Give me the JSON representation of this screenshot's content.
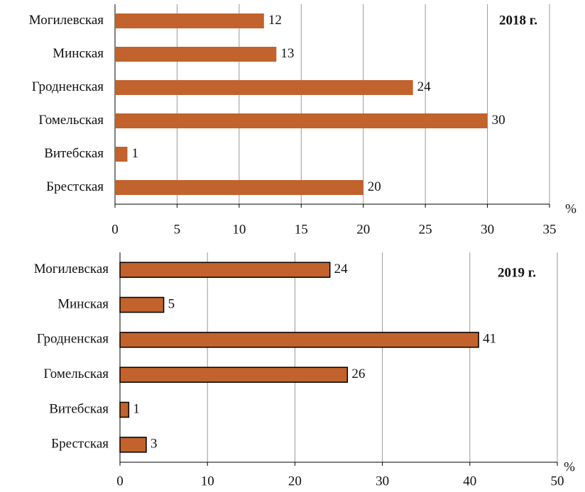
{
  "chart_data": [
    {
      "type": "barh",
      "title": "2018 г.",
      "x_label": "%",
      "categories": [
        "Могилевская",
        "Минская",
        "Гродненская",
        "Гомельская",
        "Витебская",
        "Брестская"
      ],
      "values": [
        12,
        13,
        24,
        30,
        1,
        20
      ],
      "color": "#c2622c",
      "outline": false,
      "xlim": [
        0,
        35
      ],
      "xticks": [
        0,
        5,
        10,
        15,
        20,
        25,
        30,
        35
      ],
      "grid": true
    },
    {
      "type": "barh",
      "title": "2019 г.",
      "x_label": "%",
      "categories": [
        "Могилевская",
        "Минская",
        "Гродненская",
        "Гомельская",
        "Витебская",
        "Брестская"
      ],
      "values": [
        24,
        5,
        41,
        26,
        1,
        3
      ],
      "color": "#c2622c",
      "outline": true,
      "xlim": [
        0,
        50
      ],
      "xticks": [
        0,
        10,
        20,
        30,
        40,
        50
      ],
      "grid": true
    }
  ]
}
